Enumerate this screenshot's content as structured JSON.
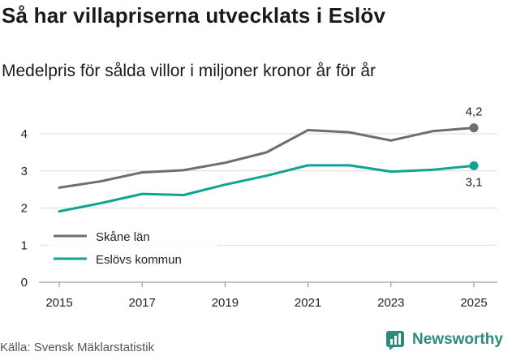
{
  "title": "Så har villapriserna utvecklats i Eslöv",
  "subtitle": "Medelpris för sålda villor i miljoner kronor år för år",
  "source": "Källa: Svensk Mäklarstatistik",
  "brand": "Newsworthy",
  "colors": {
    "skane": "#6d6d72",
    "eslov": "#0fa394",
    "grid": "#d9d9d9",
    "brand": "#2e8b7a"
  },
  "chart_data": {
    "type": "line",
    "x": [
      2015,
      2016,
      2017,
      2018,
      2019,
      2020,
      2021,
      2022,
      2023,
      2024,
      2025
    ],
    "series": [
      {
        "name": "Skåne län",
        "values": [
          2.55,
          2.72,
          2.96,
          3.02,
          3.22,
          3.5,
          4.1,
          4.04,
          3.82,
          4.07,
          4.16
        ],
        "end_label": "4,2"
      },
      {
        "name": "Eslövs kommun",
        "values": [
          1.91,
          2.13,
          2.38,
          2.35,
          2.63,
          2.87,
          3.15,
          3.15,
          2.98,
          3.03,
          3.14
        ],
        "end_label": "3,1"
      }
    ],
    "xticks": [
      "2015",
      "2017",
      "2019",
      "2021",
      "2023",
      "2025"
    ],
    "yticks": [
      "0",
      "1",
      "2",
      "3",
      "4"
    ],
    "ylim": [
      0,
      4.4
    ],
    "legend": "bottom-left"
  }
}
